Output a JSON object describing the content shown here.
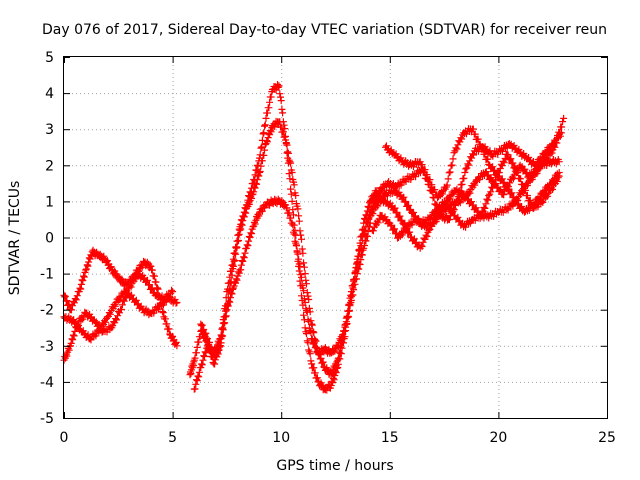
{
  "chart_data": {
    "type": "scatter",
    "title": "Day 076 of 2017, Sidereal Day-to-day VTEC variation (SDTVAR) for receiver reun",
    "xlabel": "GPS time / hours",
    "ylabel": "SDTVAR / TECUs",
    "xlim": [
      0,
      25
    ],
    "ylim": [
      -5,
      5
    ],
    "xticks": [
      0,
      5,
      10,
      15,
      20,
      25
    ],
    "yticks": [
      -5,
      -4,
      -3,
      -2,
      -1,
      0,
      1,
      2,
      3,
      4,
      5
    ],
    "grid": true,
    "marker": "plus",
    "color": "#ff0000",
    "series": [
      {
        "x": [
          0.0,
          0.3,
          0.7,
          1.0,
          1.3,
          1.6,
          1.9,
          2.2,
          2.5,
          2.8,
          3.1,
          3.4,
          3.7,
          4.0,
          4.3,
          4.6,
          4.9,
          5.2
        ],
        "y": [
          -1.6,
          -2.0,
          -1.5,
          -0.9,
          -0.4,
          -0.5,
          -0.6,
          -0.9,
          -1.1,
          -1.3,
          -1.2,
          -0.9,
          -0.7,
          -0.8,
          -1.4,
          -2.2,
          -2.7,
          -3.0
        ]
      },
      {
        "x": [
          0.0,
          0.3,
          0.6,
          1.0,
          1.4,
          1.8,
          2.2,
          2.6,
          3.0,
          3.4,
          3.8,
          4.2,
          4.6,
          5.0
        ],
        "y": [
          -3.4,
          -3.0,
          -2.4,
          -2.1,
          -2.3,
          -2.6,
          -2.5,
          -2.0,
          -1.4,
          -1.0,
          -1.2,
          -1.6,
          -1.7,
          -1.5
        ]
      },
      {
        "x": [
          0.0,
          0.4,
          0.8,
          1.2,
          1.6,
          2.0,
          2.4,
          2.8,
          3.2,
          3.6,
          4.0,
          4.4,
          4.8,
          5.2
        ],
        "y": [
          -2.2,
          -2.3,
          -2.6,
          -2.8,
          -2.6,
          -2.2,
          -1.8,
          -1.5,
          -1.7,
          -2.0,
          -2.1,
          -1.9,
          -1.7,
          -1.8
        ]
      },
      {
        "x": [
          5.8,
          6.0,
          6.3,
          6.6,
          6.9,
          7.2,
          7.5,
          7.8,
          8.1,
          8.4,
          8.7,
          9.0,
          9.3,
          9.6,
          9.9,
          10.2,
          10.5,
          10.8,
          11.1,
          11.4,
          11.7,
          12.0,
          12.3,
          12.6,
          12.9,
          13.2,
          13.5,
          13.8,
          14.1,
          14.4
        ],
        "y": [
          -3.8,
          -3.4,
          -2.6,
          -2.9,
          -3.5,
          -3.0,
          -1.5,
          -0.6,
          0.3,
          0.9,
          1.5,
          2.2,
          3.3,
          4.1,
          4.2,
          2.8,
          1.0,
          -0.8,
          -2.5,
          -3.5,
          -4.0,
          -4.2,
          -4.1,
          -3.6,
          -2.8,
          -1.8,
          -0.6,
          0.4,
          1.0,
          1.3
        ]
      },
      {
        "x": [
          6.0,
          6.3,
          6.6,
          6.9,
          7.2,
          7.5,
          7.8,
          8.1,
          8.4,
          8.7,
          9.0,
          9.3,
          9.6,
          9.9,
          10.2,
          10.5,
          10.8,
          11.1,
          11.4,
          11.7,
          12.0,
          12.3,
          12.6,
          12.9,
          13.2,
          13.5,
          13.8,
          14.1,
          14.4,
          14.7
        ],
        "y": [
          -4.2,
          -3.6,
          -3.0,
          -3.2,
          -2.8,
          -1.9,
          -0.8,
          0.2,
          0.8,
          1.2,
          1.8,
          2.6,
          3.1,
          3.2,
          2.7,
          1.8,
          0.6,
          -1.0,
          -2.4,
          -3.2,
          -3.6,
          -3.8,
          -3.4,
          -2.6,
          -1.6,
          -0.7,
          0.1,
          0.7,
          1.1,
          1.4
        ]
      },
      {
        "x": [
          6.3,
          6.6,
          6.9,
          7.2,
          7.5,
          7.8,
          8.1,
          8.4,
          8.7,
          9.0,
          9.3,
          9.6,
          9.9,
          10.2,
          10.5,
          10.8,
          11.1,
          11.4,
          11.7,
          12.0,
          12.3,
          12.6,
          12.9,
          13.2,
          13.5,
          13.8,
          14.1
        ],
        "y": [
          -2.4,
          -2.8,
          -3.3,
          -3.0,
          -2.0,
          -1.4,
          -0.9,
          -0.3,
          0.3,
          0.7,
          0.9,
          1.0,
          1.0,
          0.9,
          0.4,
          -0.6,
          -1.8,
          -2.8,
          -3.2,
          -3.1,
          -3.2,
          -3.0,
          -2.6,
          -1.8,
          -1.0,
          -0.3,
          0.4
        ]
      },
      {
        "x": [
          14.8,
          15.2,
          15.6,
          16.0,
          16.4,
          16.8,
          17.2,
          17.6,
          18.0,
          18.4,
          18.8,
          19.2,
          19.6,
          20.0,
          20.4,
          20.8,
          21.2,
          21.6,
          22.0,
          22.4,
          22.8
        ],
        "y": [
          2.5,
          2.3,
          2.1,
          2.0,
          2.1,
          1.6,
          1.1,
          1.4,
          2.4,
          2.9,
          3.0,
          2.5,
          2.0,
          1.7,
          1.4,
          1.0,
          0.7,
          0.9,
          1.2,
          1.5,
          1.8
        ]
      },
      {
        "x": [
          14.5,
          14.9,
          15.3,
          15.7,
          16.1,
          16.5,
          16.9,
          17.3,
          17.7,
          18.1,
          18.5,
          18.9,
          19.3,
          19.7,
          20.1,
          20.5,
          20.9,
          21.3,
          21.7,
          22.1,
          22.5,
          22.9
        ],
        "y": [
          1.3,
          1.5,
          1.4,
          1.6,
          1.7,
          1.9,
          1.3,
          0.6,
          0.5,
          1.0,
          1.9,
          2.4,
          2.5,
          2.3,
          2.4,
          2.6,
          2.4,
          2.2,
          2.0,
          2.3,
          2.6,
          2.9
        ]
      },
      {
        "x": [
          14.4,
          14.8,
          15.2,
          15.6,
          16.0,
          16.4,
          16.8,
          17.2,
          17.6,
          18.0,
          18.4,
          18.8,
          19.2,
          19.6,
          20.0,
          20.4,
          20.8,
          21.2,
          21.6,
          22.0,
          22.4,
          22.8
        ],
        "y": [
          1.1,
          1.0,
          0.8,
          0.4,
          0.0,
          -0.3,
          0.2,
          0.7,
          0.9,
          0.6,
          0.3,
          0.5,
          0.6,
          1.2,
          1.8,
          2.3,
          1.9,
          1.3,
          0.8,
          1.0,
          1.3,
          1.7
        ]
      },
      {
        "x": [
          14.2,
          14.6,
          15.0,
          15.4,
          15.8,
          16.2,
          16.6,
          17.0,
          17.4,
          17.8,
          18.2,
          18.6,
          19.0,
          19.4,
          19.8,
          20.2,
          20.6,
          21.0,
          21.4,
          21.8,
          22.2,
          22.6,
          23.0
        ],
        "y": [
          0.2,
          0.6,
          0.4,
          0.0,
          0.3,
          0.5,
          0.3,
          0.4,
          0.7,
          0.9,
          1.0,
          1.2,
          1.6,
          1.8,
          1.5,
          1.2,
          1.6,
          2.0,
          1.7,
          1.9,
          2.2,
          2.5,
          3.3
        ]
      },
      {
        "x": [
          14.0,
          14.4,
          14.8,
          15.2,
          15.6,
          16.0,
          16.4,
          16.8,
          17.2,
          17.6,
          18.0,
          18.4,
          18.8,
          19.2,
          19.6,
          20.0,
          20.4,
          20.8,
          21.2,
          21.6,
          22.0,
          22.4,
          22.8
        ],
        "y": [
          0.5,
          0.9,
          1.2,
          1.3,
          1.1,
          0.7,
          0.4,
          0.5,
          0.8,
          1.0,
          1.3,
          1.2,
          0.9,
          0.6,
          0.6,
          0.7,
          0.8,
          1.0,
          1.4,
          1.7,
          2.0,
          2.1,
          2.1
        ]
      }
    ]
  }
}
